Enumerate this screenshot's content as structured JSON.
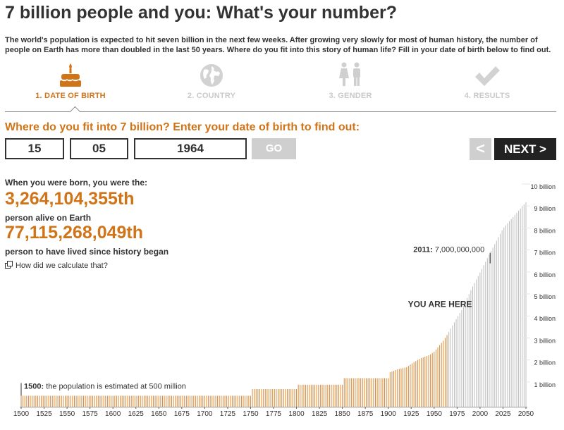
{
  "title": "7 billion people and you: What's your number?",
  "intro": "The world's population is expected to hit seven billion in the next few weeks. After growing very slowly for most of human history, the number of people on Earth has more than doubled in the last 50 years. Where do you fit into this story of human life? Fill in your date of birth below to find out.",
  "steps": [
    {
      "label": "1. DATE OF BIRTH",
      "icon": "birthday-cake-icon",
      "active": true
    },
    {
      "label": "2. COUNTRY",
      "icon": "globe-icon",
      "active": false
    },
    {
      "label": "3. GENDER",
      "icon": "gender-icon",
      "active": false
    },
    {
      "label": "4. RESULTS",
      "icon": "checkmark-icon",
      "active": false
    }
  ],
  "form": {
    "prompt": "Where do you fit into 7 billion? Enter your date of birth to find out:",
    "day": "15",
    "month": "05",
    "year": "1964",
    "go_label": "GO",
    "prev_label": "<",
    "next_label": "NEXT >"
  },
  "results": {
    "born_label": "When you were born, you were the:",
    "alive_rank": "3,264,104,355th",
    "alive_label": "person alive on Earth",
    "lived_rank": "77,115,268,049th",
    "lived_label": "person to have lived since history began",
    "how_link": "How did we calculate that?"
  },
  "colors": {
    "accent": "#d07417",
    "past_bar": "#d98a37",
    "future_bar": "#bdbdbd"
  },
  "chart_data": {
    "type": "bar",
    "x_label_ticks": [
      1500,
      1525,
      1550,
      1575,
      1600,
      1625,
      1650,
      1675,
      1700,
      1725,
      1750,
      1775,
      1800,
      1825,
      1850,
      1875,
      1900,
      1925,
      1950,
      1975,
      2000,
      2025,
      2050
    ],
    "y_ticks": [
      "1 billion",
      "2 billion",
      "3 billion",
      "4 billion",
      "5 billion",
      "6 billion",
      "7 billion",
      "8 billion",
      "9 billion",
      "10 billion"
    ],
    "ylim": [
      0,
      10
    ],
    "highlight_year": 1964,
    "annotations": [
      {
        "year": 1500,
        "bold": "1500:",
        "text": " the population is estimated at 500 million"
      },
      {
        "year": 2011,
        "bold": "2011:",
        "text": " 7,000,000,000"
      },
      {
        "year": 1964,
        "text": "YOU ARE HERE"
      }
    ],
    "population_billions": [
      {
        "year": 1500,
        "value": 0.5
      },
      {
        "year": 1750,
        "value": 0.5
      },
      {
        "year": 1751,
        "value": 0.8
      },
      {
        "year": 1800,
        "value": 0.8
      },
      {
        "year": 1801,
        "value": 1.0
      },
      {
        "year": 1850,
        "value": 1.0
      },
      {
        "year": 1851,
        "value": 1.3
      },
      {
        "year": 1900,
        "value": 1.3
      },
      {
        "year": 1901,
        "value": 1.55
      },
      {
        "year": 1910,
        "value": 1.7
      },
      {
        "year": 1920,
        "value": 1.8
      },
      {
        "year": 1927,
        "value": 2.0
      },
      {
        "year": 1935,
        "value": 2.2
      },
      {
        "year": 1945,
        "value": 2.35
      },
      {
        "year": 1950,
        "value": 2.5
      },
      {
        "year": 1955,
        "value": 2.75
      },
      {
        "year": 1960,
        "value": 3.0
      },
      {
        "year": 1964,
        "value": 3.26
      },
      {
        "year": 1970,
        "value": 3.7
      },
      {
        "year": 1980,
        "value": 4.4
      },
      {
        "year": 1990,
        "value": 5.3
      },
      {
        "year": 2000,
        "value": 6.1
      },
      {
        "year": 2011,
        "value": 7.0
      },
      {
        "year": 2025,
        "value": 8.1
      },
      {
        "year": 2050,
        "value": 9.3
      }
    ]
  }
}
